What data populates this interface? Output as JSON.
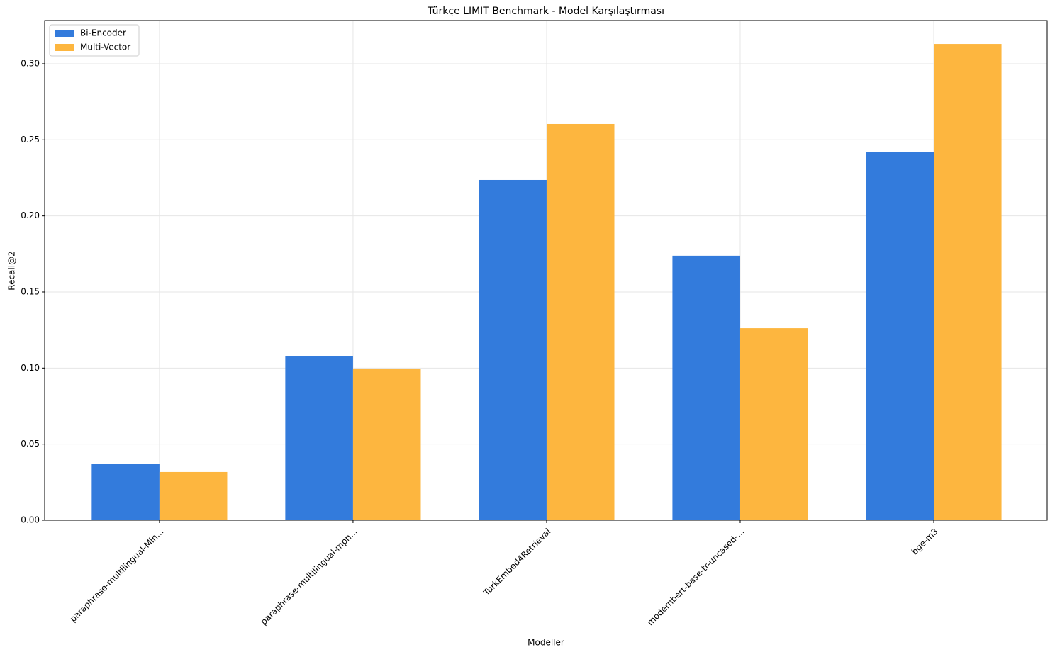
{
  "chart_data": {
    "type": "bar",
    "title": "Türkçe LIMIT Benchmark - Model Karşılaştırması",
    "x_label": "Modeller",
    "y_label": "Recall@2",
    "categories": [
      "paraphrase-multilingual-Min...",
      "paraphrase-multilingual-mpn...",
      "TurkEmbed4Retrieval",
      "modernbert-base-tr-uncased-...",
      "bge-m3"
    ],
    "series": [
      {
        "name": "Bi-Encoder",
        "color": "#337bdc",
        "values": [
          0.0368,
          0.1076,
          0.2236,
          0.1738,
          0.2422
        ]
      },
      {
        "name": "Multi-Vector",
        "color": "#fdb63f",
        "values": [
          0.0317,
          0.0997,
          0.2604,
          0.1262,
          0.313
        ]
      }
    ],
    "ylim": [
      0,
      0.3284
    ],
    "yticks": [
      {
        "value": 0,
        "label": "0.00"
      },
      {
        "value": 0.05,
        "label": "0.05"
      },
      {
        "value": 0.1,
        "label": "0.10"
      },
      {
        "value": 0.15,
        "label": "0.15"
      },
      {
        "value": 0.2,
        "label": "0.20"
      },
      {
        "value": 0.25,
        "label": "0.25"
      },
      {
        "value": 0.3,
        "label": "0.30"
      }
    ],
    "grid": true,
    "legend": "upper left"
  }
}
